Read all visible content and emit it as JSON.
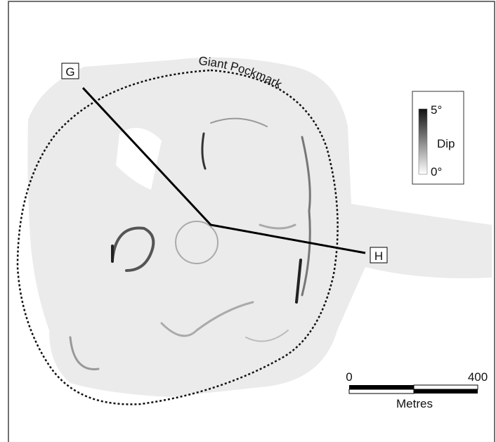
{
  "labels": {
    "profile_start": "G",
    "profile_end": "H",
    "feature": "Giant Pockmark"
  },
  "legend": {
    "max": "5°",
    "title": "Dip",
    "min": "0°"
  },
  "scale_bar": {
    "start": "0",
    "end": "400",
    "unit": "Metres"
  }
}
